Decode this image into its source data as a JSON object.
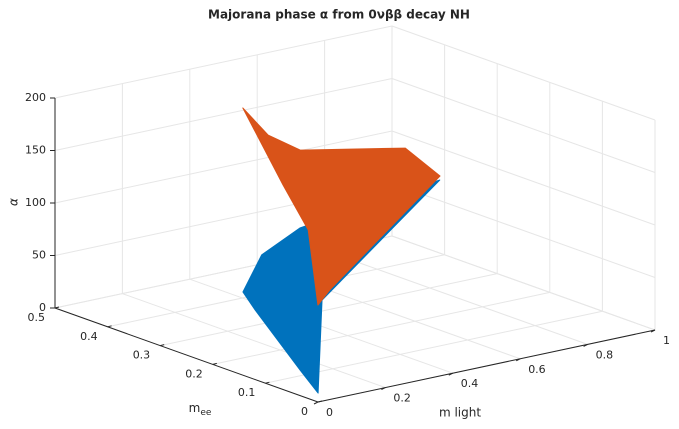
{
  "chart_data": {
    "type": "surface3d",
    "title": "Majorana phase α from 0νββ decay NH",
    "xlabel": "m light",
    "ylabel": "m",
    "ylabel_sub": "ee",
    "zlabel": "α",
    "xlim": [
      0,
      1
    ],
    "ylim": [
      0,
      0.5
    ],
    "zlim": [
      0,
      200
    ],
    "xticks": [
      0,
      0.2,
      0.4,
      0.6,
      0.8,
      1
    ],
    "yticks": [
      0,
      0.1,
      0.2,
      0.3,
      0.4,
      0.5
    ],
    "zticks": [
      0,
      50,
      100,
      150,
      200
    ],
    "grid": true,
    "series": [
      {
        "color": "#0072bd",
        "x": [
          0.105,
          0.223,
          0.352,
          0.736,
          0.346,
          0.019,
          0.078,
          0.143
        ],
        "y": [
          0.21,
          0.25,
          0.26,
          0.24,
          0.214,
          0.012,
          0.084,
          0.211
        ],
        "z": [
          60,
          80,
          95,
          118,
          35,
          5,
          10,
          40
        ]
      },
      {
        "color": "#d95319",
        "x": [
          0.406,
          0.367,
          0.403,
          0.663,
          0.746,
          0.386,
          0.34,
          0.33,
          0.299
        ],
        "y": [
          0.403,
          0.33,
          0.292,
          0.259,
          0.246,
          0.225,
          0.218,
          0.23,
          0.258
        ],
        "z": [
          180,
          170,
          160,
          150,
          120,
          40,
          30,
          100,
          140
        ]
      }
    ]
  }
}
